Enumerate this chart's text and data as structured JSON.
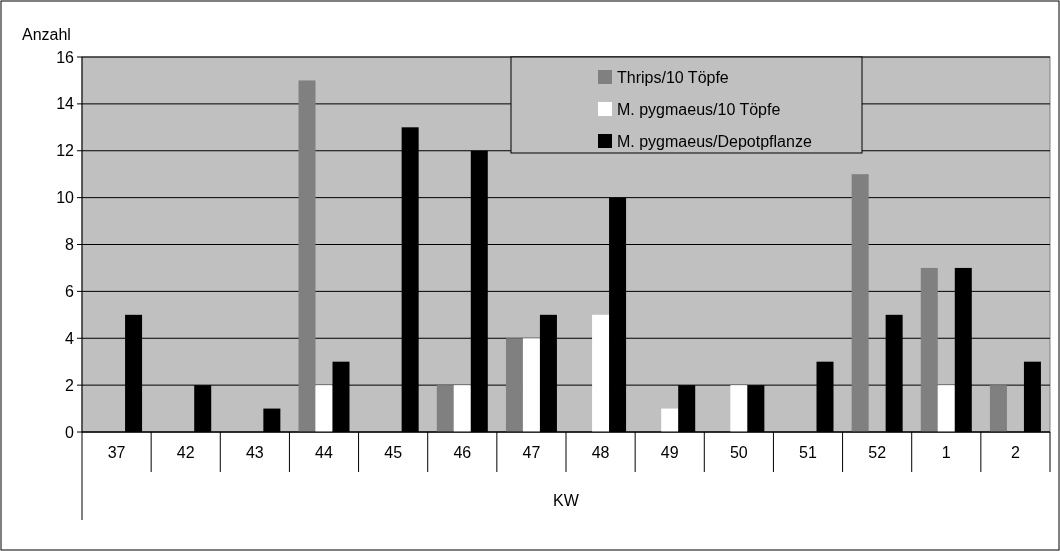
{
  "chart_data": {
    "type": "bar",
    "xlabel": "KW",
    "ylabel": "Anzahl",
    "categories": [
      "37",
      "42",
      "43",
      "44",
      "45",
      "46",
      "47",
      "48",
      "49",
      "50",
      "51",
      "52",
      "1",
      "2"
    ],
    "series": [
      {
        "name": "Thrips/10 Töpfe",
        "color": "#808080",
        "values": [
          0,
          0,
          0,
          15,
          0,
          2,
          4,
          0,
          0,
          0,
          0,
          11,
          7,
          2
        ]
      },
      {
        "name": "M. pygmaeus/10 Töpfe",
        "color": "#ffffff",
        "values": [
          0,
          0,
          0,
          2,
          0,
          2,
          4,
          5,
          1,
          2,
          0,
          0,
          2,
          0
        ]
      },
      {
        "name": "M. pygmaeus/Depotpflanze",
        "color": "#000000",
        "values": [
          5,
          2,
          1,
          3,
          13,
          12,
          5,
          10,
          2,
          2,
          3,
          5,
          7,
          3
        ]
      }
    ],
    "ylim": [
      0,
      16
    ],
    "yticks": [
      0,
      2,
      4,
      6,
      8,
      10,
      12,
      14,
      16
    ],
    "grid": "y",
    "legend": "top right"
  }
}
